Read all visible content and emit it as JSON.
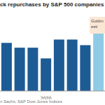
{
  "chart_data": {
    "type": "bar",
    "title": "ck repurchases by S&P 500 companies",
    "source": "n Sachs, S&P Dow Jones Indices",
    "annotations": [
      "Goldm",
      "esti"
    ],
    "categories": [
      null,
      null,
      null,
      "2020",
      null,
      null,
      null,
      null
    ],
    "values": [
      202,
      182,
      182,
      137,
      216,
      216,
      193,
      244
    ],
    "colors": [
      "#1d5b94",
      "#1d5b94",
      "#1d5b94",
      "#1d5b94",
      "#1d5b94",
      "#1d5b94",
      "#1d5b94",
      "#8fcbe6"
    ],
    "ylim": [
      0,
      300
    ],
    "yticks": [
      0,
      100,
      200,
      300
    ],
    "grid": true,
    "tick_labels": "x"
  }
}
